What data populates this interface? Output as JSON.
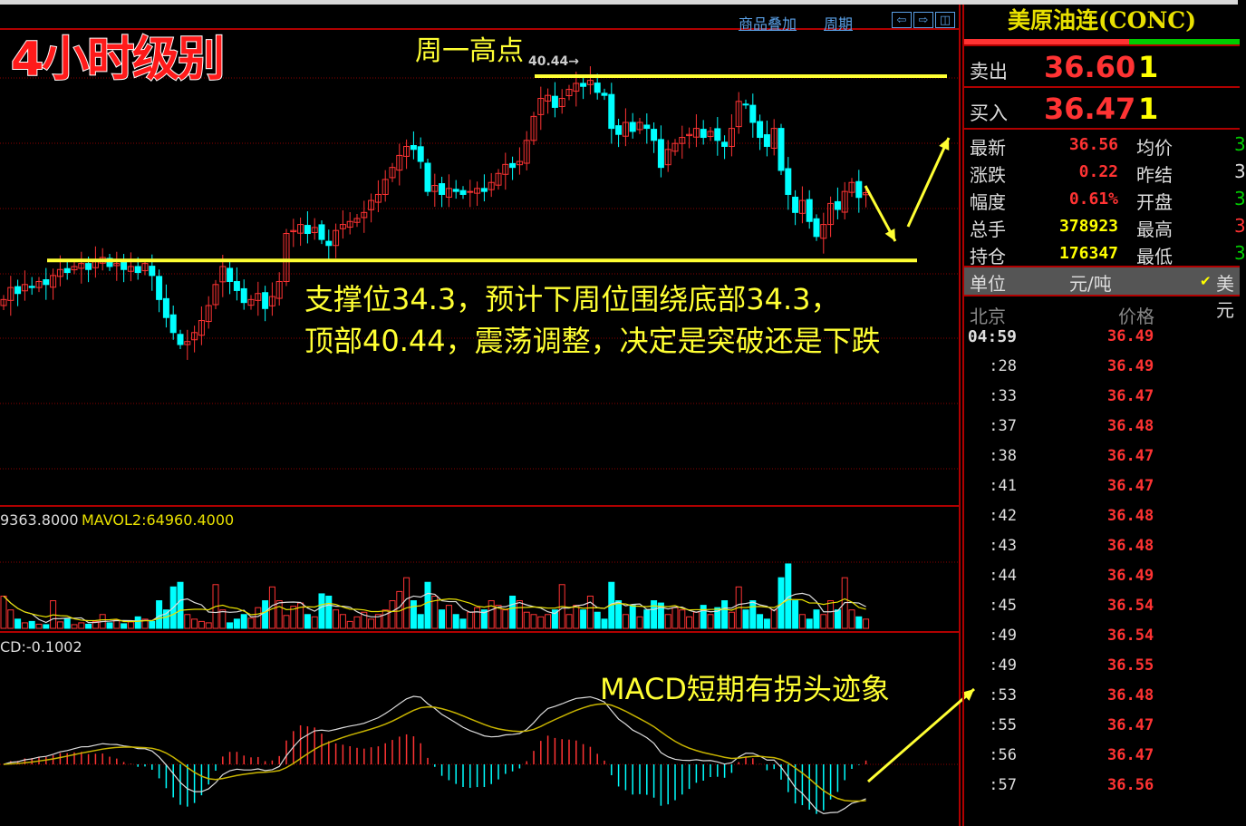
{
  "toolbar": {
    "overlay_label": "商品叠加",
    "period_label": "周期",
    "icons": [
      "arrow-left-icon",
      "arrow-right-icon",
      "layout-icon"
    ]
  },
  "annotations": {
    "timeframe": "4小时级别",
    "monday_high": "周一高点",
    "peak_marker": "40.44→",
    "support_line1": "支撑位34.3，预计下周位围绕底部34.3，",
    "support_line2": "顶部40.44，震荡调整，决定是突破还是下跌",
    "macd_note": "MACD短期有拐头迹象",
    "color": "#ffff33"
  },
  "volume_panel": {
    "mavol1_partial": "9363.8000",
    "mavol2": "MAVOL2:64960.4000"
  },
  "macd_panel": {
    "label_partial": "CD:-0.1002"
  },
  "chart_data": {
    "type": "candlestick",
    "support": 34.3,
    "resistance": 40.44,
    "ylim": [
      29.5,
      41.0
    ],
    "close": [
      33.0,
      33.4,
      33.2,
      33.5,
      33.4,
      33.6,
      33.5,
      33.8,
      34.0,
      33.9,
      34.1,
      34.2,
      34.0,
      34.3,
      34.4,
      34.1,
      34.2,
      34.0,
      34.1,
      33.9,
      34.2,
      33.8,
      33.0,
      32.4,
      31.9,
      31.5,
      31.6,
      31.9,
      32.3,
      32.8,
      33.5,
      34.1,
      33.6,
      33.3,
      32.9,
      33.0,
      33.2,
      32.7,
      33.1,
      33.6,
      35.2,
      35.3,
      35.5,
      35.2,
      35.4,
      35.0,
      34.8,
      35.3,
      35.5,
      35.6,
      35.7,
      35.9,
      36.3,
      36.5,
      37.0,
      37.4,
      37.8,
      38.1,
      38.0,
      37.6,
      36.6,
      36.8,
      36.5,
      36.7,
      36.6,
      36.5,
      36.6,
      36.7,
      36.6,
      36.9,
      37.2,
      37.5,
      37.4,
      37.6,
      38.3,
      39.1,
      39.7,
      39.8,
      39.4,
      39.7,
      40.0,
      40.2,
      40.1,
      40.3,
      39.9,
      39.8,
      38.7,
      38.5,
      38.9,
      38.6,
      38.9,
      38.7,
      38.3,
      37.4,
      38.0,
      38.2,
      38.4,
      38.5,
      38.7,
      38.4,
      38.6,
      38.3,
      38.1,
      38.7,
      39.6,
      39.5,
      38.9,
      38.4,
      38.1,
      38.7,
      37.3,
      36.5,
      35.9,
      36.3,
      35.6,
      35.1,
      35.5,
      36.2,
      36.0,
      36.6,
      36.9,
      36.4,
      36.56
    ],
    "volume": [
      70000,
      40000,
      20000,
      12000,
      15000,
      9000,
      8000,
      60000,
      14000,
      20000,
      8000,
      12000,
      9000,
      15000,
      30000,
      12000,
      18000,
      10000,
      14000,
      25000,
      20000,
      15000,
      60000,
      40000,
      90000,
      100000,
      30000,
      20000,
      15000,
      12000,
      95000,
      40000,
      12000,
      20000,
      30000,
      22000,
      45000,
      60000,
      90000,
      60000,
      28000,
      48000,
      55000,
      30000,
      25000,
      75000,
      70000,
      40000,
      30000,
      15000,
      25000,
      35000,
      20000,
      30000,
      40000,
      60000,
      80000,
      110000,
      60000,
      30000,
      100000,
      70000,
      40000,
      50000,
      30000,
      20000,
      35000,
      45000,
      40000,
      60000,
      50000,
      40000,
      70000,
      60000,
      35000,
      30000,
      25000,
      30000,
      40000,
      95000,
      30000,
      50000,
      40000,
      70000,
      35000,
      20000,
      100000,
      60000,
      30000,
      50000,
      25000,
      40000,
      60000,
      55000,
      30000,
      45000,
      40000,
      25000,
      35000,
      50000,
      30000,
      45000,
      60000,
      35000,
      90000,
      40000,
      60000,
      30000,
      20000,
      40000,
      110000,
      140000,
      60000,
      30000,
      20000,
      40000,
      30000,
      60000,
      40000,
      110000,
      40000,
      25000,
      20000
    ],
    "high_marker": 40.44
  },
  "quote": {
    "title": "美原油连(CONC)",
    "sell_label": "卖出",
    "sell_price": "36.60",
    "sell_qty": "1",
    "buy_label": "买入",
    "buy_price": "36.47",
    "buy_qty": "1",
    "stats": [
      {
        "k1": "最新",
        "v1": "36.56",
        "c1": "#ff3333",
        "k2": "均价",
        "v2": "3",
        "c2": "#00cc00"
      },
      {
        "k1": "涨跌",
        "v1": "0.22",
        "c1": "#ff3333",
        "k2": "昨结",
        "v2": "3",
        "c2": "#dddddd"
      },
      {
        "k1": "幅度",
        "v1": "0.61%",
        "c1": "#ff3333",
        "k2": "开盘",
        "v2": "3",
        "c2": "#00cc00"
      },
      {
        "k1": "总手",
        "v1": "378923",
        "c1": "#ffff00",
        "k2": "最高",
        "v2": "3",
        "c2": "#ff3333"
      },
      {
        "k1": "持仓",
        "v1": "176347",
        "c1": "#ffff00",
        "k2": "最低",
        "v2": "3",
        "c2": "#00cc00"
      }
    ],
    "unit_label": "单位",
    "unit_value": "元/吨",
    "unit_check": "✔",
    "unit_extra": "美元",
    "col_time": "北京",
    "col_price": "价格",
    "ticks": [
      {
        "t": "04:59",
        "p": "36.49"
      },
      {
        "t": ":28",
        "p": "36.49"
      },
      {
        "t": ":33",
        "p": "36.47"
      },
      {
        "t": ":37",
        "p": "36.48"
      },
      {
        "t": ":38",
        "p": "36.47"
      },
      {
        "t": ":41",
        "p": "36.47"
      },
      {
        "t": ":42",
        "p": "36.48"
      },
      {
        "t": ":43",
        "p": "36.48"
      },
      {
        "t": ":44",
        "p": "36.49"
      },
      {
        "t": ":45",
        "p": "36.54"
      },
      {
        "t": ":49",
        "p": "36.54"
      },
      {
        "t": ":49",
        "p": "36.55"
      },
      {
        "t": ":53",
        "p": "36.48"
      },
      {
        "t": ":55",
        "p": "36.47"
      },
      {
        "t": ":56",
        "p": "36.47"
      },
      {
        "t": ":57",
        "p": "36.56"
      }
    ]
  }
}
